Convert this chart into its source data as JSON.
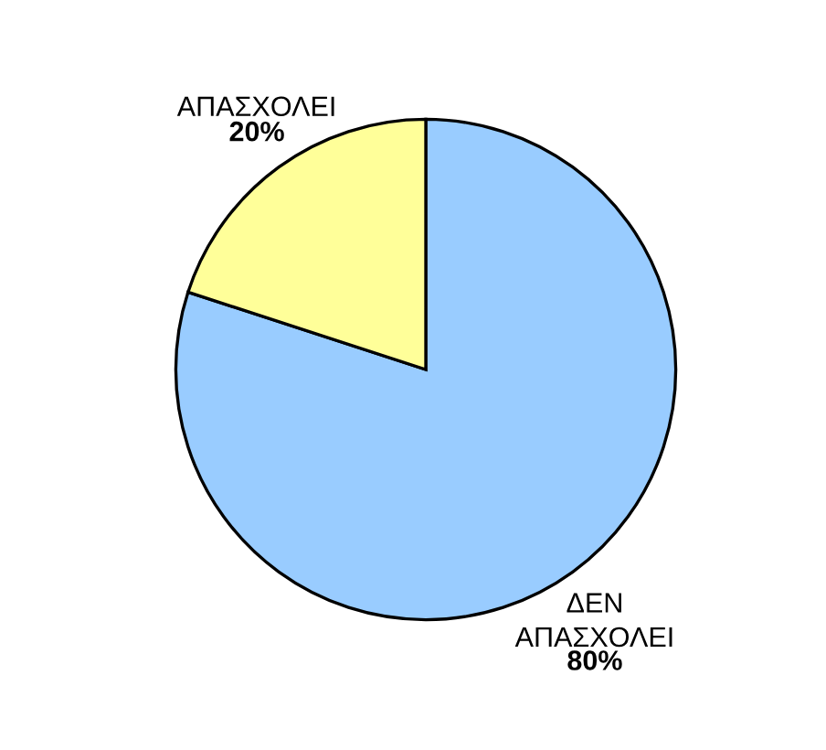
{
  "chart_data": {
    "type": "pie",
    "categories": [
      "ΔΕΝ\nΑΠΑΣΧΟΛΕΙ",
      "ΑΠΑΣΧΟΛΕΙ"
    ],
    "values": [
      80,
      20
    ],
    "colors": [
      "#99ccff",
      "#ffff99"
    ],
    "value_labels": [
      "80%",
      "20%"
    ],
    "legend": false
  }
}
